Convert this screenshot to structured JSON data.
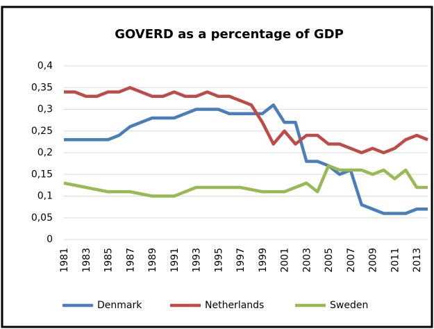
{
  "chart_data": {
    "type": "line",
    "title": "GOVERD as a percentage of GDP",
    "categories": [
      "1981",
      null,
      "1983",
      null,
      "1985",
      null,
      "1987",
      null,
      "1989",
      null,
      "1991",
      null,
      "1993",
      null,
      "1995",
      null,
      "1997",
      null,
      "1999",
      null,
      "2001",
      null,
      "2003",
      null,
      "2005",
      null,
      "2007",
      null,
      "2009",
      null,
      "2011",
      null,
      "2013",
      null
    ],
    "series": [
      {
        "name": "Denmark",
        "color": "#4a7ebb",
        "values": [
          0.23,
          0.23,
          0.23,
          0.23,
          0.23,
          0.24,
          0.26,
          0.27,
          0.28,
          0.28,
          0.28,
          0.29,
          0.3,
          0.3,
          0.3,
          0.29,
          0.29,
          0.29,
          0.29,
          0.31,
          0.27,
          0.27,
          0.18,
          0.18,
          0.17,
          0.15,
          0.16,
          0.08,
          0.07,
          0.06,
          0.06,
          0.06,
          0.07,
          0.07
        ]
      },
      {
        "name": "Netherlands",
        "color": "#be4b48",
        "values": [
          0.34,
          0.34,
          0.33,
          0.33,
          0.34,
          0.34,
          0.35,
          0.34,
          0.33,
          0.33,
          0.34,
          0.33,
          0.33,
          0.34,
          0.33,
          0.33,
          0.32,
          0.31,
          0.27,
          0.22,
          0.25,
          0.22,
          0.24,
          0.24,
          0.22,
          0.22,
          0.21,
          0.2,
          0.21,
          0.2,
          0.21,
          0.23,
          0.24,
          0.23
        ]
      },
      {
        "name": "Sweden",
        "color": "#98b954",
        "values": [
          0.13,
          0.125,
          0.12,
          0.115,
          0.11,
          0.11,
          0.11,
          0.105,
          0.1,
          0.1,
          0.1,
          0.11,
          0.12,
          0.12,
          0.12,
          0.12,
          0.12,
          0.115,
          0.11,
          0.11,
          0.11,
          0.12,
          0.13,
          0.11,
          0.17,
          0.16,
          0.16,
          0.16,
          0.15,
          0.16,
          0.14,
          0.16,
          0.12,
          0.12
        ]
      }
    ],
    "ylim": [
      0,
      0.4
    ],
    "yticks": [
      0,
      {
        "value": 0.05,
        "label": "0,05"
      },
      {
        "value": 0.1,
        "label": "0,1"
      },
      {
        "value": 0.15,
        "label": "0,15"
      },
      {
        "value": 0.2,
        "label": "0,2"
      },
      {
        "value": 0.25,
        "label": "0,25"
      },
      {
        "value": 0.3,
        "label": "0,3"
      },
      {
        "value": 0.35,
        "label": "0,35"
      },
      {
        "value": 0.4,
        "label": "0,4"
      }
    ],
    "grid": true,
    "legend": "bottom"
  }
}
